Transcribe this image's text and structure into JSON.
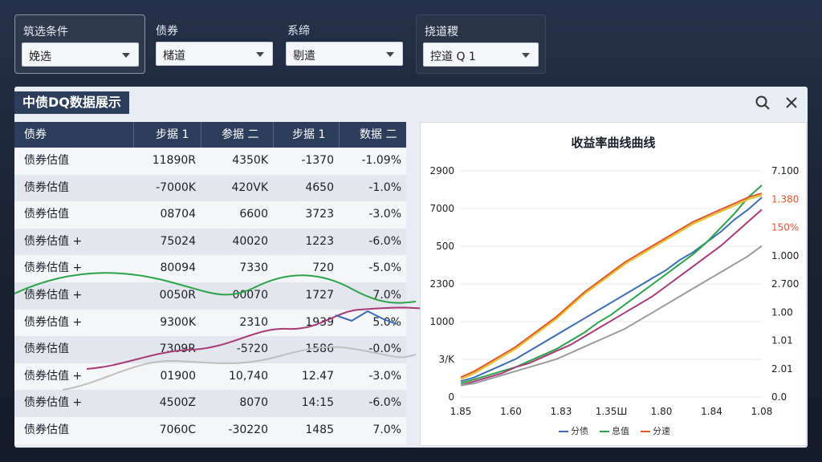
{
  "filters": {
    "f1": {
      "label": "筑选条件",
      "value": "娩选"
    },
    "f2": {
      "label": "债券",
      "value": "槠道"
    },
    "f3": {
      "label": "系缔",
      "value": "剔遣"
    },
    "f4": {
      "label": "挠道稷",
      "value": "控道 Q   1"
    }
  },
  "panel": {
    "title": "中债DQ数据展示",
    "search_icon": "search-icon",
    "close_icon": "close-icon"
  },
  "table": {
    "headers": [
      "债券",
      "步据 1",
      "参据 二",
      "步据 1",
      "数据 二"
    ],
    "rows": [
      [
        "债券估值",
        "11890R",
        "4350K",
        "-1370",
        "-1.09%"
      ],
      [
        "债券估值",
        "-7000K",
        "420VK",
        "4650",
        "-1.0%"
      ],
      [
        "债券估值",
        "08704",
        "6600",
        "3723",
        "-3.0%"
      ],
      [
        "债券估值 +",
        "75024",
        "40020",
        "1223",
        "-6.0%"
      ],
      [
        "债券估值 +",
        "80094",
        "7330",
        "720",
        "-5.0%"
      ],
      [
        "债券估值 +",
        "0050R",
        "00070",
        "1727",
        "7.0%"
      ],
      [
        "债券估值 +",
        "9300K",
        "2310",
        "1939",
        "5.0%"
      ],
      [
        "债券估值",
        "7309R",
        "-5?20",
        "1586",
        "-0.0%"
      ],
      [
        "债券估值 +",
        "01900",
        "10,740",
        "12.47",
        "-3.0%"
      ],
      [
        "债券估值 +",
        "4500Z",
        "8070",
        "14:15",
        "-6.0%"
      ],
      [
        "债券估值",
        "7060C",
        "-30220",
        "1485",
        "7.0%"
      ]
    ]
  },
  "chart_data": {
    "type": "line",
    "title": "收益率曲线曲线",
    "left_ticks": [
      "2900",
      "7000",
      "500",
      "2300",
      "1000",
      "3/K",
      "0"
    ],
    "right_ticks": [
      "7.100",
      "1.380",
      "150%",
      "1.000",
      "2.700",
      "1.00",
      "1.01",
      "2.01",
      "0.0"
    ],
    "x_ticks": [
      "1.85",
      "1.60",
      "1.83",
      "1.35Ш",
      "1.80",
      "1.84",
      "1.08"
    ],
    "series": [
      {
        "name": "分债",
        "color": "#3b6db3",
        "values": [
          3,
          5,
          8,
          11,
          14,
          18,
          22,
          26,
          30,
          34,
          38,
          42,
          46,
          50,
          54,
          58,
          63,
          67,
          72,
          77,
          83,
          88,
          94
        ]
      },
      {
        "name": "息值",
        "color": "#2ba34a",
        "values": [
          2,
          4,
          6,
          8,
          10,
          13,
          16,
          19,
          23,
          27,
          32,
          36,
          41,
          46,
          51,
          56,
          61,
          66,
          72,
          79,
          86,
          94,
          100
        ]
      },
      {
        "name": "分速",
        "color": "#e2552d",
        "values": [
          5,
          8,
          12,
          16,
          20,
          25,
          30,
          35,
          41,
          47,
          52,
          57,
          62,
          66,
          70,
          74,
          78,
          82,
          85,
          88,
          91,
          94,
          96
        ]
      },
      {
        "color": "#e0c226",
        "values": [
          4,
          7,
          11,
          15,
          19,
          24,
          29,
          34,
          40,
          46,
          51,
          56,
          61,
          65,
          69,
          73,
          77,
          81,
          84,
          87,
          90,
          93,
          95
        ]
      },
      {
        "color": "#a93a78",
        "values": [
          1,
          3,
          5,
          7,
          10,
          12,
          15,
          18,
          21,
          25,
          29,
          33,
          37,
          41,
          45,
          50,
          55,
          60,
          65,
          70,
          76,
          82,
          88
        ]
      },
      {
        "color": "#9b9b9b",
        "values": [
          1,
          2,
          4,
          6,
          8,
          10,
          12,
          14,
          17,
          20,
          23,
          26,
          29,
          33,
          37,
          41,
          45,
          49,
          53,
          57,
          61,
          65,
          70
        ]
      }
    ],
    "legend": [
      "分债",
      "息值",
      "分速"
    ]
  }
}
